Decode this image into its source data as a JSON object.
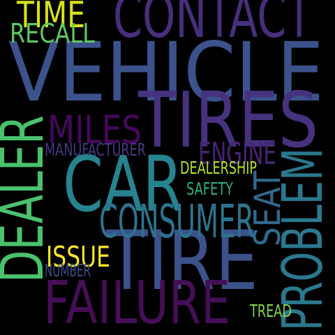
{
  "background": "#000000",
  "words": [
    {
      "id": "vehicle",
      "text": "VEHICLE",
      "color": "#3b528b"
    },
    {
      "id": "contact",
      "text": "CONTACT",
      "color": "#472f7d"
    },
    {
      "id": "tires",
      "text": "TIRES",
      "color": "#46327e"
    },
    {
      "id": "car",
      "text": "CAR",
      "color": "#26838f"
    },
    {
      "id": "tire",
      "text": "TIRE",
      "color": "#3b528b"
    },
    {
      "id": "dealer",
      "text": "DEALER",
      "color": "#4ac16d"
    },
    {
      "id": "failure",
      "text": "FAILURE",
      "color": "#440f56"
    },
    {
      "id": "problem",
      "text": "PROBLEM",
      "color": "#2a788e"
    },
    {
      "id": "consumer",
      "text": "CONSUMER",
      "color": "#2c728e"
    },
    {
      "id": "miles",
      "text": "MILES",
      "color": "#46085c"
    },
    {
      "id": "seat",
      "text": "SEAT",
      "color": "#31688e"
    },
    {
      "id": "time",
      "text": "TIME",
      "color": "#d8e219"
    },
    {
      "id": "recall",
      "text": "RECALL",
      "color": "#5ec962"
    },
    {
      "id": "engine",
      "text": "ENGINE",
      "color": "#482374"
    },
    {
      "id": "issue",
      "text": "ISSUE",
      "color": "#fde725"
    },
    {
      "id": "manufacturer",
      "text": "MANUFACTURER",
      "color": "#443983"
    },
    {
      "id": "dealership",
      "text": "DEALERSHIP",
      "color": "#b5de2b"
    },
    {
      "id": "safety",
      "text": "SAFETY",
      "color": "#2db27d"
    },
    {
      "id": "number",
      "text": "NUMBER",
      "color": "#3e4989"
    },
    {
      "id": "tread",
      "text": "TREAD",
      "color": "#84d44b"
    }
  ]
}
